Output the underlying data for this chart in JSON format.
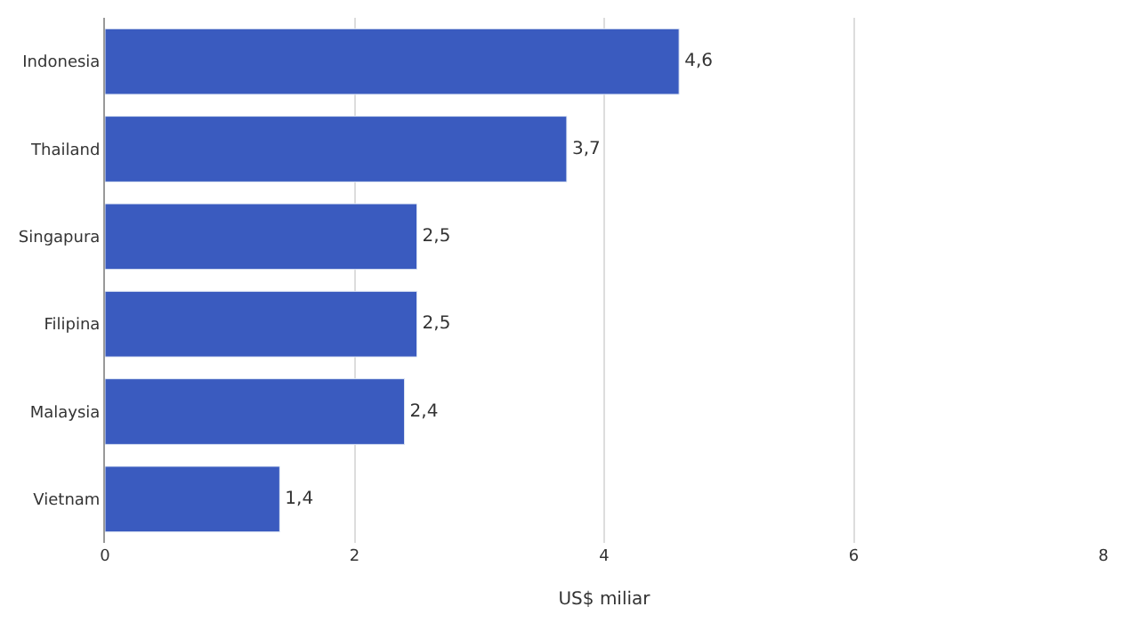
{
  "chart_data": {
    "type": "bar",
    "orientation": "horizontal",
    "xlabel": "US$ miliar",
    "categories": [
      "Indonesia",
      "Thailand",
      "Singapura",
      "Filipina",
      "Malaysia",
      "Vietnam"
    ],
    "values": [
      4.6,
      3.7,
      2.5,
      2.5,
      2.4,
      1.4
    ],
    "value_labels": [
      "4,6",
      "3,7",
      "2,5",
      "2,5",
      "2,4",
      "1,4"
    ],
    "color": "#3a5bbf",
    "xlim": [
      0,
      8
    ],
    "xticks": [
      0,
      2,
      4,
      6,
      8
    ],
    "grid": "x",
    "legend": false
  }
}
